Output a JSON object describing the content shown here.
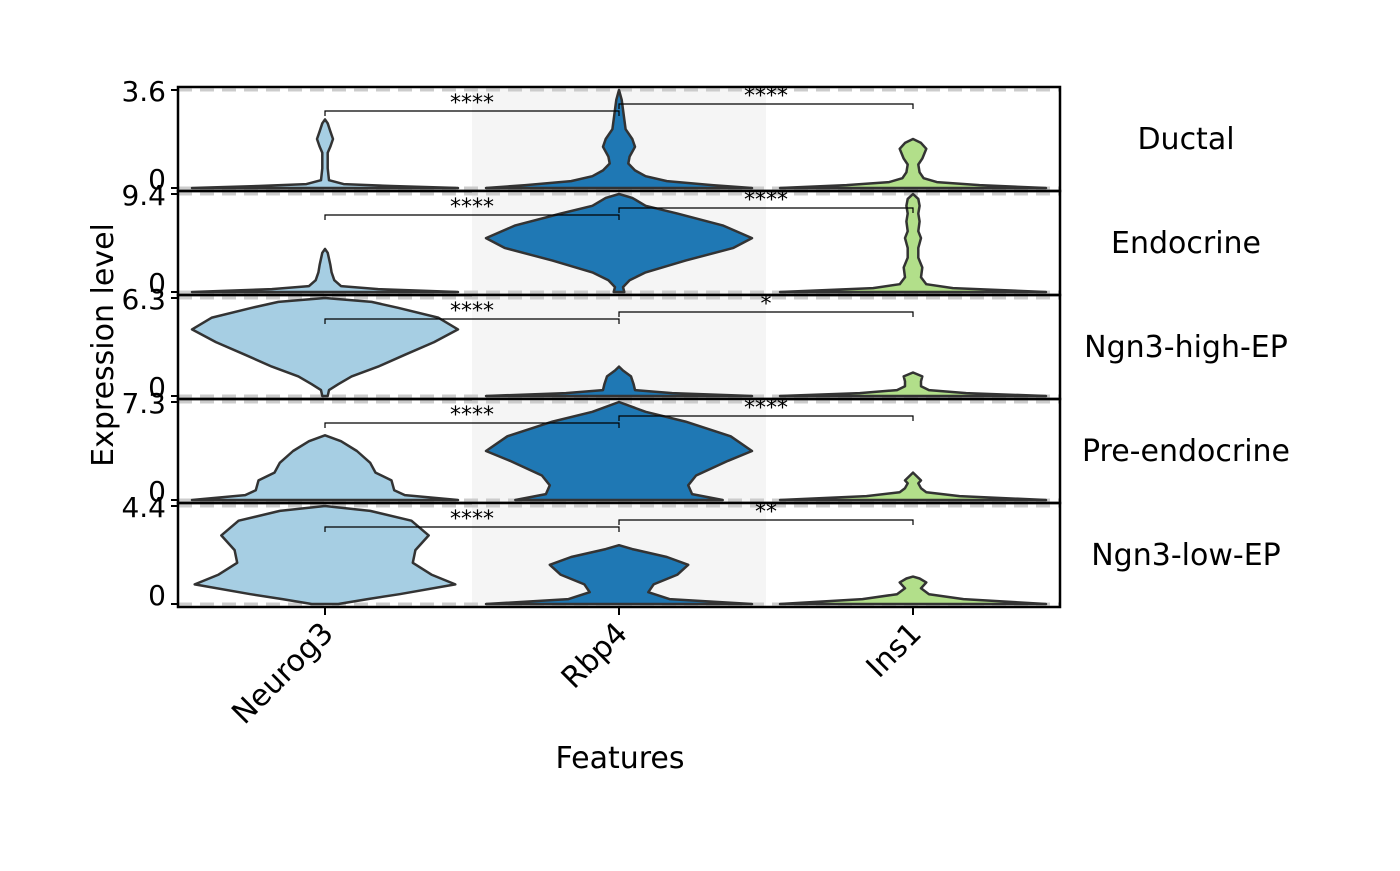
{
  "chart_data": {
    "type": "violin",
    "xlabel": "Features",
    "ylabel": "Expression level",
    "features": [
      "Neurog3",
      "Rbp4",
      "Ins1"
    ],
    "colors": {
      "Neurog3": "#a6cee3",
      "Rbp4": "#1f78b4",
      "Ins1": "#b2df8a",
      "outline": "#333333",
      "band": "#f5f5f5",
      "dash": "#cccccc"
    },
    "panels": [
      {
        "name": "Ductal",
        "ymax_label": "3.6",
        "ymin_label": "0",
        "significance": [
          "****",
          "****"
        ],
        "violins": {
          "Neurog3": [
            [
              0,
              1.0
            ],
            [
              0.02,
              0.5
            ],
            [
              0.04,
              0.14
            ],
            [
              0.08,
              0.03
            ],
            [
              0.2,
              0.02
            ],
            [
              0.36,
              0.02
            ],
            [
              0.42,
              0.04
            ],
            [
              0.5,
              0.06
            ],
            [
              0.58,
              0.04
            ],
            [
              0.66,
              0.02
            ],
            [
              0.7,
              0.0
            ]
          ],
          "Rbp4": [
            [
              0,
              1.0
            ],
            [
              0.03,
              0.7
            ],
            [
              0.07,
              0.36
            ],
            [
              0.12,
              0.2
            ],
            [
              0.18,
              0.12
            ],
            [
              0.25,
              0.07
            ],
            [
              0.32,
              0.08
            ],
            [
              0.42,
              0.12
            ],
            [
              0.5,
              0.1
            ],
            [
              0.6,
              0.05
            ],
            [
              0.7,
              0.04
            ],
            [
              0.8,
              0.03
            ],
            [
              0.9,
              0.02
            ],
            [
              1.0,
              0.0
            ]
          ],
          "Ins1": [
            [
              0,
              1.0
            ],
            [
              0.03,
              0.5
            ],
            [
              0.06,
              0.18
            ],
            [
              0.1,
              0.08
            ],
            [
              0.16,
              0.05
            ],
            [
              0.24,
              0.04
            ],
            [
              0.3,
              0.07
            ],
            [
              0.4,
              0.1
            ],
            [
              0.46,
              0.06
            ],
            [
              0.5,
              0.0
            ]
          ]
        }
      },
      {
        "name": "Endocrine",
        "ymax_label": "9.4",
        "ymin_label": "0",
        "significance": [
          "****",
          "****"
        ],
        "violins": {
          "Neurog3": [
            [
              0,
              1.0
            ],
            [
              0.03,
              0.4
            ],
            [
              0.06,
              0.12
            ],
            [
              0.12,
              0.07
            ],
            [
              0.2,
              0.05
            ],
            [
              0.28,
              0.04
            ],
            [
              0.34,
              0.03
            ],
            [
              0.4,
              0.02
            ],
            [
              0.44,
              0.0
            ]
          ],
          "Rbp4": [
            [
              0,
              0.04
            ],
            [
              0.05,
              0.03
            ],
            [
              0.12,
              0.08
            ],
            [
              0.2,
              0.2
            ],
            [
              0.32,
              0.5
            ],
            [
              0.45,
              0.86
            ],
            [
              0.55,
              1.0
            ],
            [
              0.68,
              0.78
            ],
            [
              0.8,
              0.44
            ],
            [
              0.88,
              0.2
            ],
            [
              0.96,
              0.1
            ],
            [
              1.0,
              0.0
            ]
          ],
          "Ins1": [
            [
              0,
              1.0
            ],
            [
              0.04,
              0.3
            ],
            [
              0.08,
              0.1
            ],
            [
              0.15,
              0.06
            ],
            [
              0.25,
              0.07
            ],
            [
              0.35,
              0.04
            ],
            [
              0.45,
              0.04
            ],
            [
              0.55,
              0.06
            ],
            [
              0.62,
              0.04
            ],
            [
              0.72,
              0.05
            ],
            [
              0.8,
              0.04
            ],
            [
              0.88,
              0.05
            ],
            [
              0.95,
              0.04
            ],
            [
              1.0,
              0.0
            ]
          ]
        }
      },
      {
        "name": "Ngn3-high-EP",
        "ymax_label": "6.3",
        "ymin_label": "0",
        "significance": [
          "****",
          "*"
        ],
        "violins": {
          "Neurog3": [
            [
              0,
              0.02
            ],
            [
              0.06,
              0.03
            ],
            [
              0.12,
              0.1
            ],
            [
              0.2,
              0.2
            ],
            [
              0.3,
              0.4
            ],
            [
              0.42,
              0.6
            ],
            [
              0.55,
              0.82
            ],
            [
              0.68,
              1.0
            ],
            [
              0.8,
              0.85
            ],
            [
              0.9,
              0.55
            ],
            [
              0.96,
              0.35
            ],
            [
              1.0,
              0.0
            ]
          ],
          "Rbp4": [
            [
              0,
              1.0
            ],
            [
              0.03,
              0.4
            ],
            [
              0.06,
              0.12
            ],
            [
              0.12,
              0.11
            ],
            [
              0.2,
              0.09
            ],
            [
              0.26,
              0.03
            ],
            [
              0.3,
              0.0
            ]
          ],
          "Ins1": [
            [
              0,
              1.0
            ],
            [
              0.03,
              0.4
            ],
            [
              0.06,
              0.12
            ],
            [
              0.1,
              0.06
            ],
            [
              0.15,
              0.06
            ],
            [
              0.2,
              0.07
            ],
            [
              0.24,
              0.0
            ]
          ]
        }
      },
      {
        "name": "Pre-endocrine",
        "ymax_label": "7.3",
        "ymin_label": "0",
        "significance": [
          "****",
          "****"
        ],
        "violins": {
          "Neurog3": [
            [
              0,
              1.0
            ],
            [
              0.05,
              0.6
            ],
            [
              0.1,
              0.52
            ],
            [
              0.2,
              0.5
            ],
            [
              0.28,
              0.38
            ],
            [
              0.38,
              0.34
            ],
            [
              0.5,
              0.24
            ],
            [
              0.6,
              0.12
            ],
            [
              0.66,
              0.0
            ]
          ],
          "Rbp4": [
            [
              0,
              0.78
            ],
            [
              0.06,
              0.55
            ],
            [
              0.15,
              0.52
            ],
            [
              0.25,
              0.58
            ],
            [
              0.4,
              0.82
            ],
            [
              0.5,
              1.0
            ],
            [
              0.65,
              0.84
            ],
            [
              0.8,
              0.5
            ],
            [
              0.9,
              0.2
            ],
            [
              1.0,
              0.0
            ]
          ],
          "Ins1": [
            [
              0,
              1.0
            ],
            [
              0.04,
              0.35
            ],
            [
              0.08,
              0.1
            ],
            [
              0.12,
              0.06
            ],
            [
              0.17,
              0.04
            ],
            [
              0.2,
              0.06
            ],
            [
              0.24,
              0.03
            ],
            [
              0.28,
              0.0
            ]
          ]
        }
      },
      {
        "name": "Ngn3-low-EP",
        "ymax_label": "4.4",
        "ymin_label": "0",
        "significance": [
          "****",
          "**"
        ],
        "violins": {
          "Neurog3": [
            [
              0,
              0.1
            ],
            [
              0.05,
              0.32
            ],
            [
              0.1,
              0.56
            ],
            [
              0.2,
              0.98
            ],
            [
              0.3,
              0.8
            ],
            [
              0.42,
              0.66
            ],
            [
              0.55,
              0.68
            ],
            [
              0.7,
              0.78
            ],
            [
              0.85,
              0.65
            ],
            [
              0.95,
              0.34
            ],
            [
              1.0,
              0.0
            ]
          ],
          "Rbp4": [
            [
              0,
              1.0
            ],
            [
              0.05,
              0.38
            ],
            [
              0.12,
              0.22
            ],
            [
              0.2,
              0.26
            ],
            [
              0.3,
              0.44
            ],
            [
              0.4,
              0.52
            ],
            [
              0.48,
              0.36
            ],
            [
              0.56,
              0.1
            ],
            [
              0.6,
              0.0
            ]
          ],
          "Ins1": [
            [
              0,
              1.0
            ],
            [
              0.05,
              0.38
            ],
            [
              0.1,
              0.12
            ],
            [
              0.16,
              0.06
            ],
            [
              0.22,
              0.1
            ],
            [
              0.26,
              0.05
            ],
            [
              0.28,
              0.0
            ]
          ]
        }
      }
    ]
  }
}
